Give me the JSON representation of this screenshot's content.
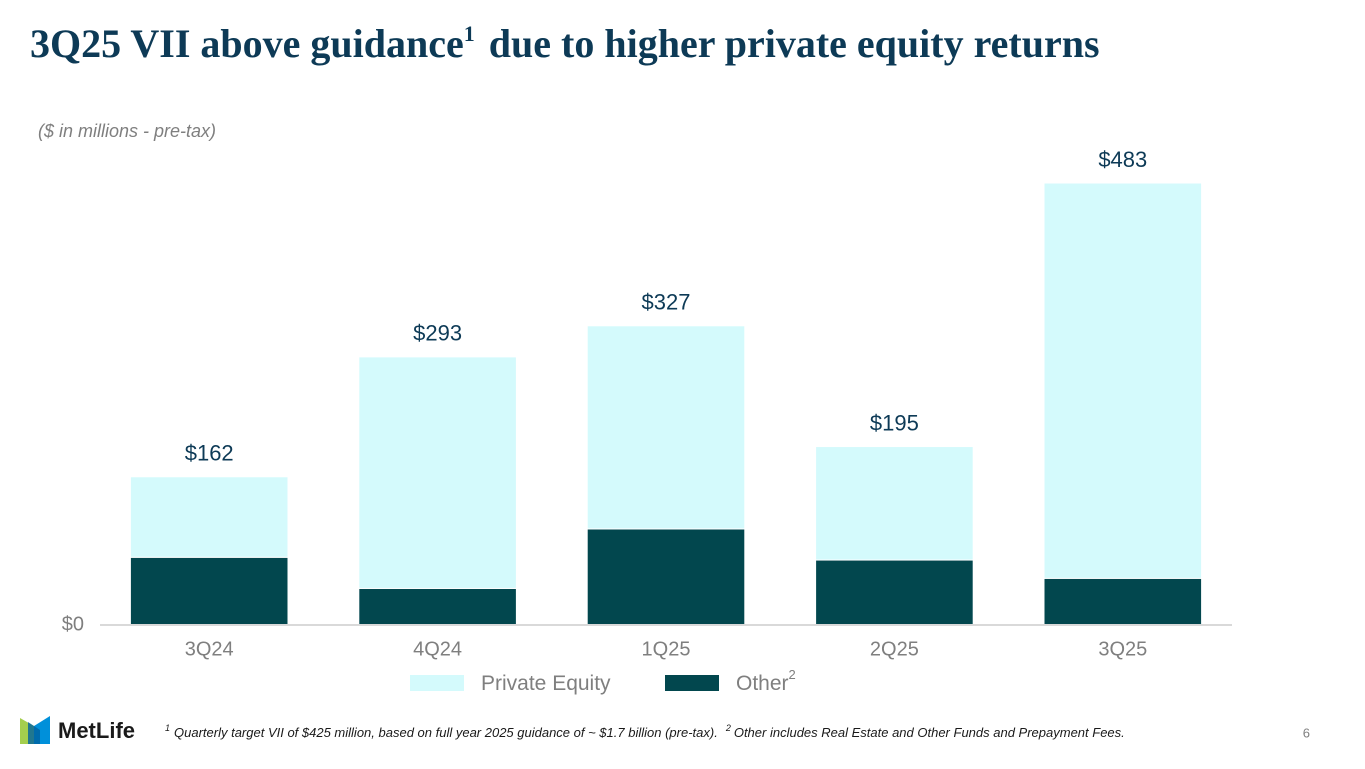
{
  "chart_data": {
    "type": "stacked-bar",
    "title": "3Q25 VII above guidance",
    "title_sup": "1",
    "title_rest": "due to higher private equity returns",
    "subtitle": "($ in millions - pre-tax)",
    "categories": [
      "3Q24",
      "4Q24",
      "1Q25",
      "2Q25",
      "3Q25"
    ],
    "series": [
      {
        "name": "Other",
        "name_sup": "2",
        "color": "#02474e",
        "values": [
          74,
          40,
          105,
          71,
          51
        ]
      },
      {
        "name": "Private Equity",
        "color": "#d4fafc",
        "values": [
          88,
          253,
          222,
          124,
          432
        ]
      }
    ],
    "totals": [
      162,
      293,
      327,
      195,
      483
    ],
    "total_labels": [
      "$162",
      "$293",
      "$327",
      "$195",
      "$483"
    ],
    "ylim": [
      0,
      530
    ],
    "yticks": [
      {
        "value": 0,
        "label": "$0"
      }
    ],
    "footnotes": [
      {
        "marker": "1",
        "text": "Quarterly target VII of $425 million, based on full year 2025 guidance of ~ $1.7 billion (pre-tax)."
      },
      {
        "marker": "2",
        "text": "Other includes Real Estate and Other Funds and Prepayment Fees."
      }
    ],
    "logo": "MetLife",
    "page_number": "6"
  }
}
